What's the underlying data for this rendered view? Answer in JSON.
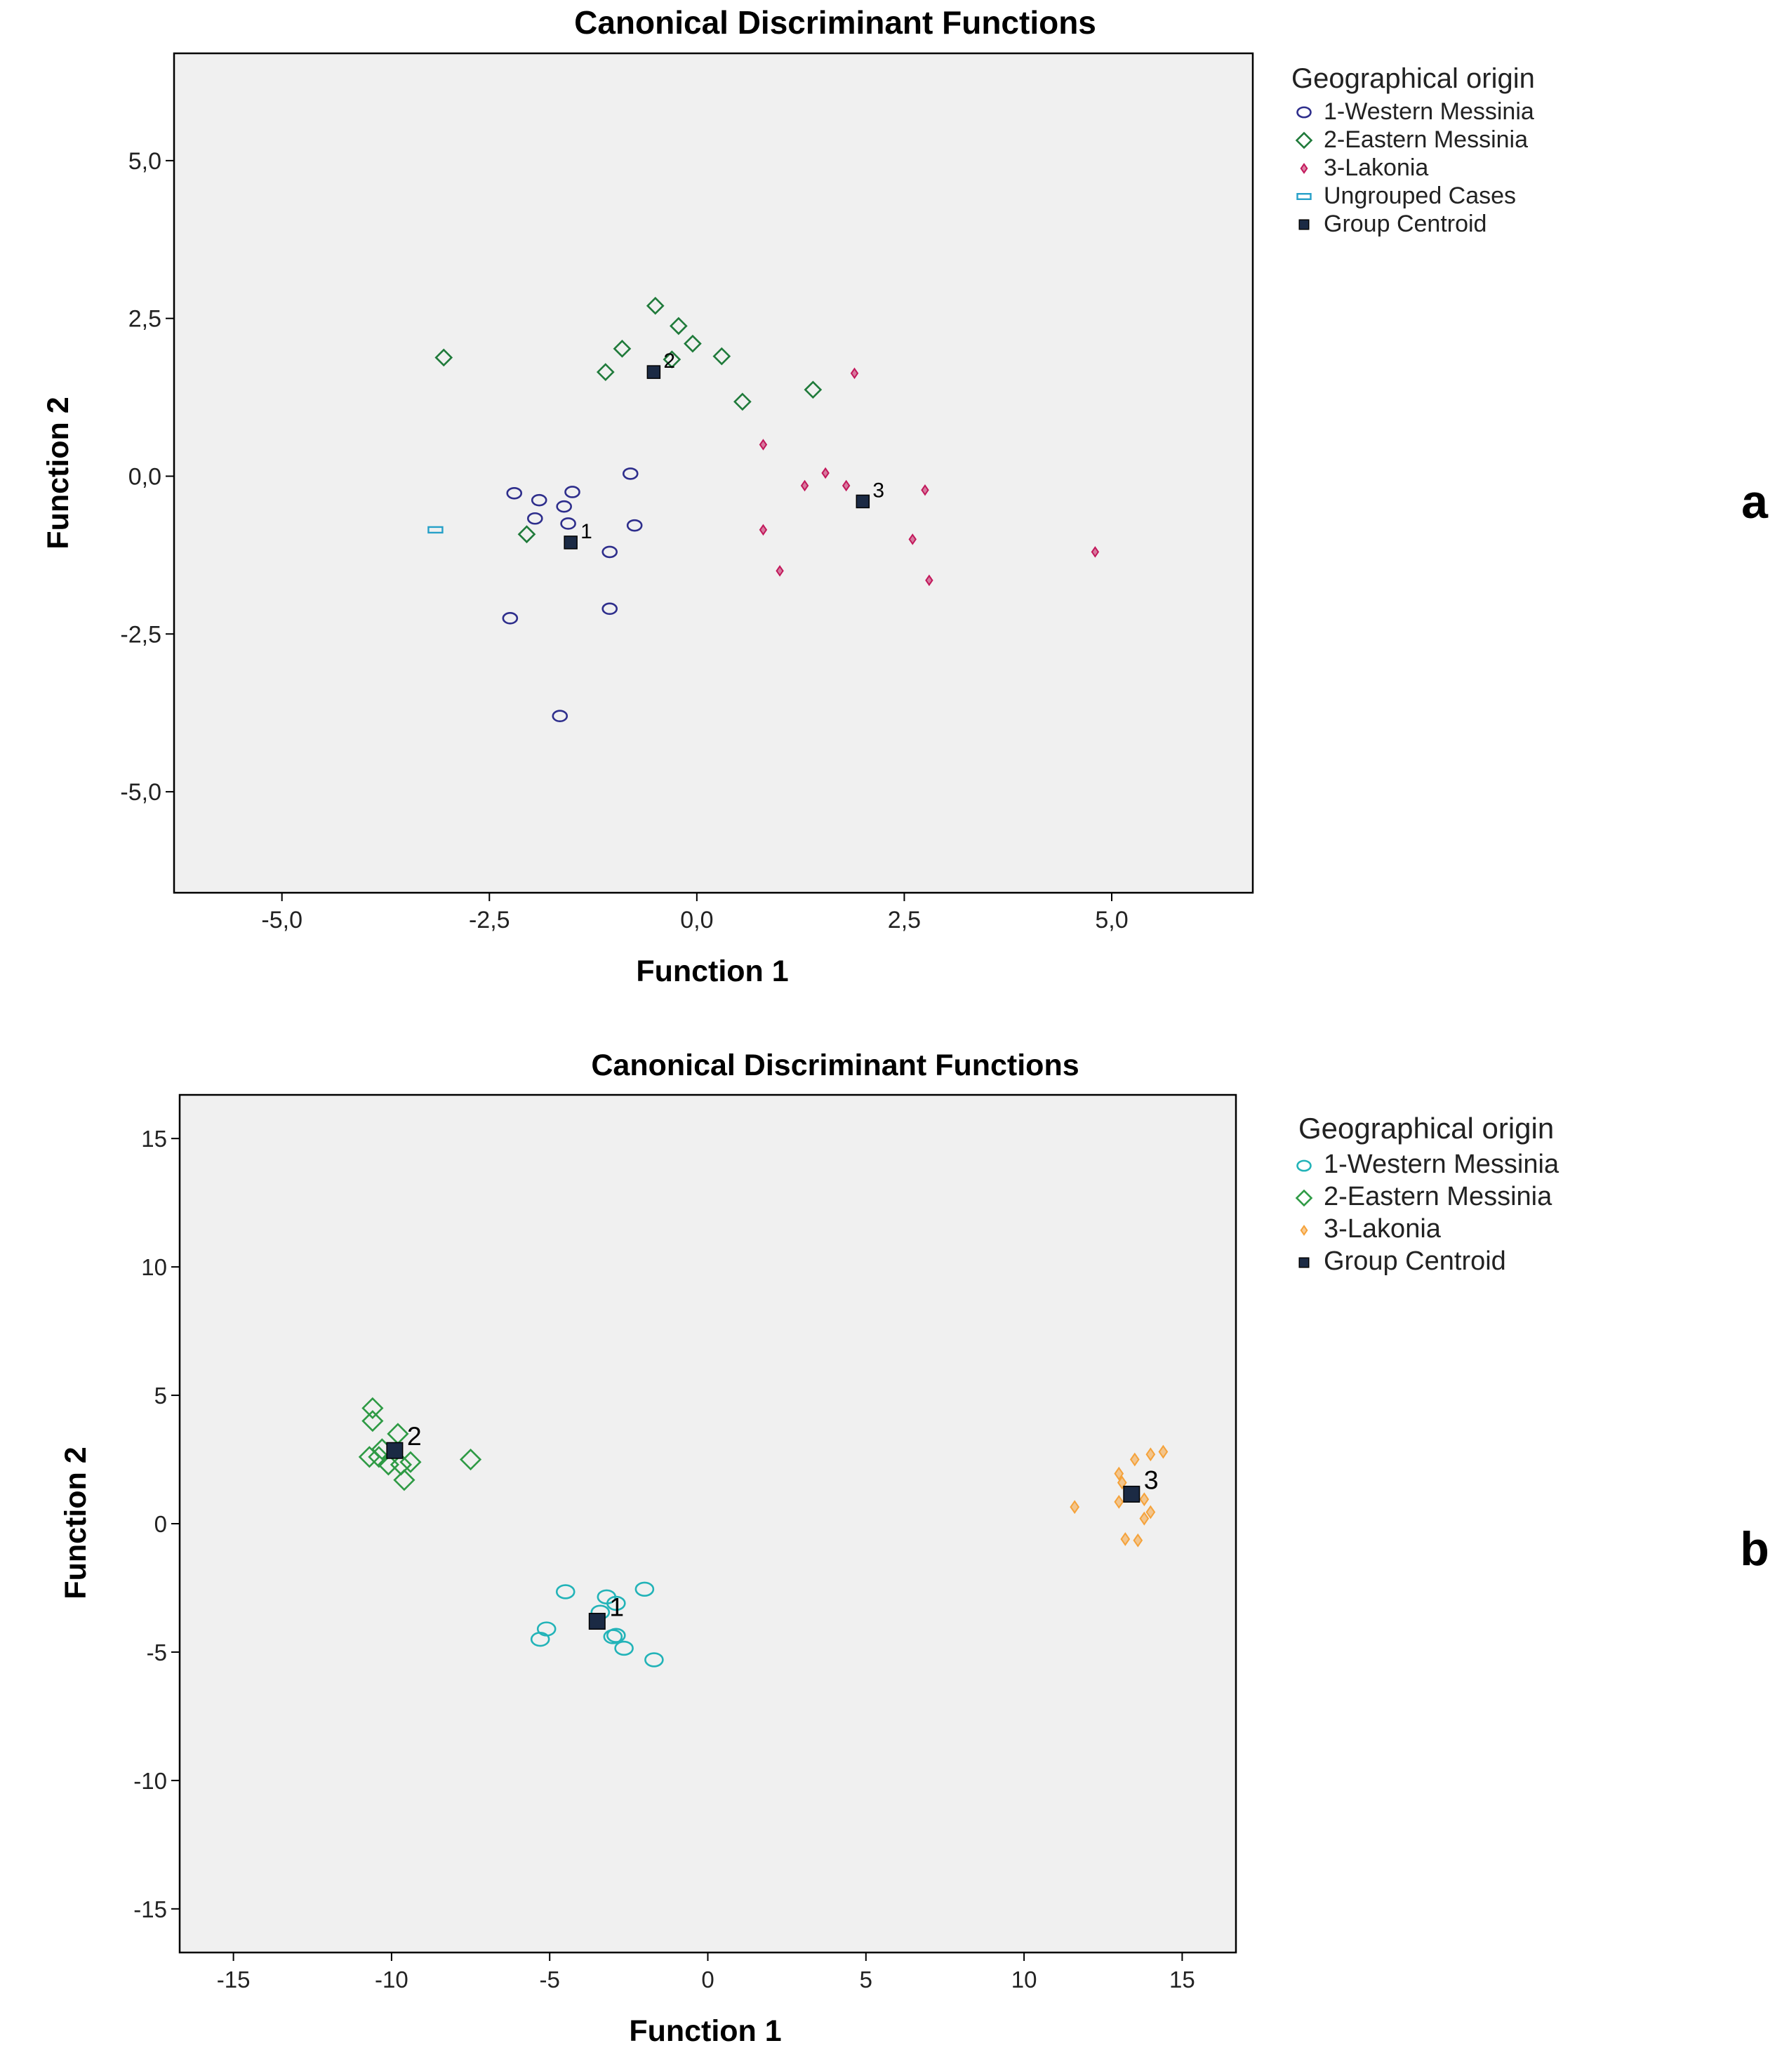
{
  "chart_data": [
    {
      "type": "scatter",
      "panel_label": "a",
      "title": "Canonical Discriminant Functions",
      "xlabel": "Function 1",
      "ylabel": "Function 2",
      "xlim": [
        -6.3,
        6.7
      ],
      "ylim": [
        -6.6,
        6.7
      ],
      "xticks": [
        -5.0,
        -2.5,
        0.0,
        2.5,
        5.0
      ],
      "xtick_labels": [
        "-5,0",
        "-2,5",
        "0,0",
        "2,5",
        "5,0"
      ],
      "yticks": [
        5.0,
        2.5,
        0.0,
        -2.5,
        -5.0
      ],
      "ytick_labels": [
        "5,0",
        "2,5",
        "0,0",
        "-2,5",
        "-5,0"
      ],
      "grid": false,
      "legend_title": "Geographical origin",
      "legend": [
        {
          "name": "1-Western Messinia",
          "marker": "circle",
          "color": "#2e2e8c"
        },
        {
          "name": "2-Eastern Messinia",
          "marker": "diamond",
          "color": "#1f7a3a"
        },
        {
          "name": "3-Lakonia",
          "marker": "smalldiamond",
          "color": "#c2185b"
        },
        {
          "name": "Ungrouped Cases",
          "marker": "rect",
          "color": "#26a0c8"
        },
        {
          "name": "Group Centroid",
          "marker": "square",
          "color": "#1b2a44"
        }
      ],
      "series": [
        {
          "name": "1-Western Messinia",
          "marker": "circle",
          "color": "#2e2e8c",
          "points": [
            [
              -2.2,
              -0.27
            ],
            [
              -1.9,
              -0.38
            ],
            [
              -1.6,
              -0.48
            ],
            [
              -1.5,
              -0.25
            ],
            [
              -1.95,
              -0.67
            ],
            [
              -1.55,
              -0.75
            ],
            [
              -1.05,
              -1.2
            ],
            [
              -0.8,
              0.04
            ],
            [
              -0.75,
              -0.78
            ],
            [
              -2.25,
              -2.25
            ],
            [
              -1.05,
              -2.1
            ],
            [
              -1.65,
              -3.8
            ]
          ]
        },
        {
          "name": "2-Eastern Messinia",
          "marker": "diamond",
          "color": "#1f7a3a",
          "points": [
            [
              -3.05,
              1.88
            ],
            [
              -0.5,
              2.7
            ],
            [
              -0.22,
              2.38
            ],
            [
              -0.05,
              2.1
            ],
            [
              -0.9,
              2.02
            ],
            [
              -1.1,
              1.65
            ],
            [
              -0.3,
              1.85
            ],
            [
              0.3,
              1.9
            ],
            [
              0.55,
              1.18
            ],
            [
              1.4,
              1.37
            ],
            [
              -2.05,
              -0.92
            ]
          ]
        },
        {
          "name": "3-Lakonia",
          "marker": "smalldiamond",
          "color": "#c2185b",
          "points": [
            [
              1.9,
              1.63
            ],
            [
              0.8,
              0.5
            ],
            [
              1.3,
              -0.15
            ],
            [
              1.55,
              0.05
            ],
            [
              1.8,
              -0.15
            ],
            [
              2.75,
              -0.22
            ],
            [
              0.8,
              -0.85
            ],
            [
              1.0,
              -1.5
            ],
            [
              2.6,
              -1.0
            ],
            [
              2.8,
              -1.65
            ],
            [
              4.8,
              -1.2
            ]
          ]
        },
        {
          "name": "Ungrouped Cases",
          "marker": "rect",
          "color": "#26a0c8",
          "points": [
            [
              -3.15,
              -0.85
            ]
          ]
        },
        {
          "name": "Group Centroid",
          "marker": "square",
          "color": "#1b2a44",
          "points": [
            [
              -1.52,
              -1.05
            ],
            [
              -0.52,
              1.65
            ],
            [
              2.0,
              -0.4
            ]
          ],
          "labels": [
            "1",
            "2",
            "3"
          ]
        }
      ]
    },
    {
      "type": "scatter",
      "panel_label": "b",
      "title": "Canonical Discriminant Functions",
      "xlabel": "Function 1",
      "ylabel": "Function 2",
      "xlim": [
        -16.7,
        16.7
      ],
      "ylim": [
        -16.7,
        16.7
      ],
      "xticks": [
        -15,
        -10,
        -5,
        0,
        5,
        10,
        15
      ],
      "xtick_labels": [
        "-15",
        "-10",
        "-5",
        "0",
        "5",
        "10",
        "15"
      ],
      "yticks": [
        15,
        10,
        5,
        0,
        -5,
        -10,
        -15
      ],
      "ytick_labels": [
        "15",
        "10",
        "5",
        "0",
        "-5",
        "-10",
        "-15"
      ],
      "grid": false,
      "legend_title": "Geographical origin",
      "legend": [
        {
          "name": "1-Western Messinia",
          "marker": "circle",
          "color": "#22b3b8"
        },
        {
          "name": "2-Eastern Messinia",
          "marker": "diamond",
          "color": "#2e9a44"
        },
        {
          "name": "3-Lakonia",
          "marker": "smalldiamond",
          "color": "#f5a23a"
        },
        {
          "name": "Group Centroid",
          "marker": "square",
          "color": "#1b2a44"
        }
      ],
      "series": [
        {
          "name": "1-Western Messinia",
          "marker": "circle",
          "color": "#22b3b8",
          "points": [
            [
              -4.5,
              -2.65
            ],
            [
              -3.2,
              -2.85
            ],
            [
              -2.0,
              -2.55
            ],
            [
              -2.9,
              -3.1
            ],
            [
              -3.4,
              -3.45
            ],
            [
              -5.1,
              -4.1
            ],
            [
              -5.3,
              -4.5
            ],
            [
              -2.9,
              -4.35
            ],
            [
              -3.0,
              -4.4
            ],
            [
              -2.65,
              -4.85
            ],
            [
              -1.7,
              -5.3
            ]
          ]
        },
        {
          "name": "2-Eastern Messinia",
          "marker": "diamond",
          "color": "#2e9a44",
          "points": [
            [
              -10.6,
              4.5
            ],
            [
              -10.6,
              4.0
            ],
            [
              -9.8,
              3.5
            ],
            [
              -10.3,
              2.9
            ],
            [
              -10.7,
              2.6
            ],
            [
              -10.4,
              2.6
            ],
            [
              -10.1,
              2.3
            ],
            [
              -9.7,
              2.3
            ],
            [
              -9.4,
              2.4
            ],
            [
              -9.6,
              1.7
            ],
            [
              -7.5,
              2.5
            ]
          ]
        },
        {
          "name": "3-Lakonia",
          "marker": "smalldiamond",
          "color": "#f5a23a",
          "points": [
            [
              14.4,
              2.8
            ],
            [
              14.0,
              2.7
            ],
            [
              13.5,
              2.5
            ],
            [
              13.0,
              1.95
            ],
            [
              13.1,
              1.6
            ],
            [
              11.6,
              0.65
            ],
            [
              13.0,
              0.85
            ],
            [
              13.8,
              0.95
            ],
            [
              14.0,
              0.45
            ],
            [
              13.8,
              0.2
            ],
            [
              13.2,
              -0.6
            ],
            [
              13.6,
              -0.65
            ]
          ]
        },
        {
          "name": "Group Centroid",
          "marker": "square",
          "color": "#1b2a44",
          "points": [
            [
              -3.5,
              -3.8
            ],
            [
              -9.9,
              2.85
            ],
            [
              13.4,
              1.15
            ]
          ],
          "labels": [
            "1",
            "2",
            "3"
          ]
        }
      ]
    }
  ]
}
